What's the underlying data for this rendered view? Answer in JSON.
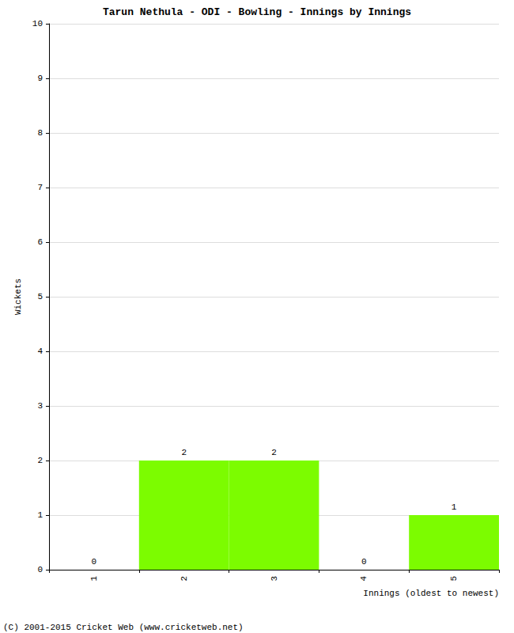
{
  "chart_data": {
    "type": "bar",
    "title": "Tarun Nethula - ODI - Bowling - Innings by Innings",
    "x_label": "Innings (oldest to newest)",
    "y_label": "Wickets",
    "annotations": [
      "(C) 2001-2015 Cricket Web (www.cricketweb.net)"
    ],
    "categories": [
      "1",
      "2",
      "3",
      "4",
      "5"
    ],
    "values": [
      0,
      2,
      2,
      0,
      1
    ],
    "color": "#7cfc00",
    "ylim": [
      0,
      10
    ],
    "yticks": [
      0,
      1,
      2,
      3,
      4,
      5,
      6,
      7,
      8,
      9,
      10
    ],
    "grid": true,
    "data_labels": true
  }
}
